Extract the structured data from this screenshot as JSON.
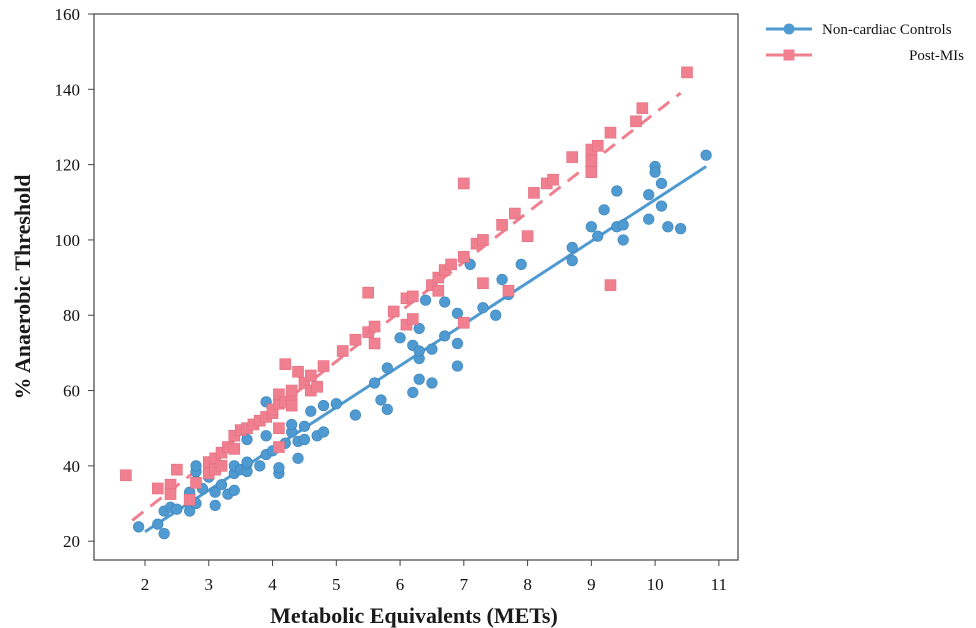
{
  "chart_data": {
    "type": "scatter",
    "xlabel": "Metabolic Equivalents (METs)",
    "ylabel": "% Anaerobic Threshold",
    "xlim": [
      1.2,
      11.3
    ],
    "ylim": [
      15,
      160
    ],
    "xticks": [
      2,
      3,
      4,
      5,
      6,
      7,
      8,
      9,
      10,
      11
    ],
    "yticks": [
      20,
      40,
      60,
      80,
      100,
      120,
      140,
      160
    ],
    "grid": false,
    "legend_position": "top-right, outside plot",
    "series": [
      {
        "name": "Non-cardiac Controls",
        "color": "#4f9ad0",
        "marker": "circle",
        "line_style": "solid",
        "fit_line": [
          [
            2.0,
            22.5
          ],
          [
            10.8,
            119.5
          ]
        ],
        "points": [
          [
            1.9,
            23.8
          ],
          [
            2.2,
            24.5
          ],
          [
            2.3,
            22.0
          ],
          [
            2.3,
            28.0
          ],
          [
            2.4,
            29.0
          ],
          [
            2.5,
            28.5
          ],
          [
            2.7,
            33.0
          ],
          [
            2.7,
            28.0
          ],
          [
            2.8,
            36.0
          ],
          [
            2.8,
            38.5
          ],
          [
            2.8,
            40.0
          ],
          [
            2.8,
            30.0
          ],
          [
            2.9,
            34.0
          ],
          [
            3.0,
            37.0
          ],
          [
            3.1,
            33.0
          ],
          [
            3.1,
            29.5
          ],
          [
            3.2,
            35.0
          ],
          [
            3.3,
            32.5
          ],
          [
            3.4,
            38.0
          ],
          [
            3.4,
            40.0
          ],
          [
            3.4,
            33.5
          ],
          [
            3.5,
            39.0
          ],
          [
            3.6,
            38.5
          ],
          [
            3.6,
            40.5
          ],
          [
            3.6,
            41.0
          ],
          [
            3.6,
            47.0
          ],
          [
            3.8,
            40.0
          ],
          [
            3.9,
            43.0
          ],
          [
            3.9,
            48.0
          ],
          [
            3.9,
            57.0
          ],
          [
            4.0,
            44.0
          ],
          [
            4.1,
            38.0
          ],
          [
            4.1,
            39.5
          ],
          [
            4.2,
            46.0
          ],
          [
            4.3,
            49.0
          ],
          [
            4.3,
            51.0
          ],
          [
            4.4,
            46.5
          ],
          [
            4.4,
            42.0
          ],
          [
            4.5,
            50.5
          ],
          [
            4.5,
            47.0
          ],
          [
            4.6,
            54.5
          ],
          [
            4.7,
            48.0
          ],
          [
            4.8,
            49.0
          ],
          [
            4.8,
            56.0
          ],
          [
            5.0,
            56.5
          ],
          [
            5.3,
            53.5
          ],
          [
            5.6,
            62.0
          ],
          [
            5.7,
            57.5
          ],
          [
            5.8,
            55.0
          ],
          [
            5.8,
            66.0
          ],
          [
            6.0,
            74.0
          ],
          [
            6.2,
            59.5
          ],
          [
            6.2,
            72.0
          ],
          [
            6.3,
            68.5
          ],
          [
            6.3,
            63.0
          ],
          [
            6.3,
            70.5
          ],
          [
            6.3,
            76.5
          ],
          [
            6.4,
            84.0
          ],
          [
            6.5,
            62.0
          ],
          [
            6.5,
            71.0
          ],
          [
            6.7,
            83.5
          ],
          [
            6.7,
            74.5
          ],
          [
            6.9,
            72.5
          ],
          [
            6.9,
            66.5
          ],
          [
            6.9,
            80.5
          ],
          [
            7.1,
            93.5
          ],
          [
            7.3,
            82.0
          ],
          [
            7.5,
            80.0
          ],
          [
            7.6,
            89.5
          ],
          [
            7.7,
            85.5
          ],
          [
            7.9,
            93.5
          ],
          [
            8.7,
            94.5
          ],
          [
            8.7,
            98.0
          ],
          [
            9.0,
            103.5
          ],
          [
            9.1,
            101.0
          ],
          [
            9.2,
            108.0
          ],
          [
            9.4,
            113.0
          ],
          [
            9.4,
            103.5
          ],
          [
            9.5,
            104.0
          ],
          [
            9.5,
            100.0
          ],
          [
            9.9,
            105.5
          ],
          [
            9.9,
            112.0
          ],
          [
            10.0,
            119.5
          ],
          [
            10.0,
            118.0
          ],
          [
            10.1,
            115.0
          ],
          [
            10.1,
            109.0
          ],
          [
            10.2,
            103.5
          ],
          [
            10.4,
            103.0
          ],
          [
            10.8,
            122.5
          ]
        ]
      },
      {
        "name": "Post-MIs",
        "color": "#f07f8f",
        "marker": "square",
        "line_style": "dashed",
        "fit_line": [
          [
            1.8,
            25.5
          ],
          [
            10.4,
            139.0
          ]
        ],
        "points": [
          [
            1.7,
            37.5
          ],
          [
            2.2,
            34.0
          ],
          [
            2.4,
            35.0
          ],
          [
            2.4,
            32.5
          ],
          [
            2.5,
            39.0
          ],
          [
            2.7,
            31.0
          ],
          [
            2.8,
            35.5
          ],
          [
            3.0,
            40.0
          ],
          [
            3.0,
            38.0
          ],
          [
            3.0,
            41.0
          ],
          [
            3.1,
            39.0
          ],
          [
            3.1,
            42.0
          ],
          [
            3.2,
            40.0
          ],
          [
            3.2,
            43.5
          ],
          [
            3.3,
            45.0
          ],
          [
            3.4,
            44.5
          ],
          [
            3.4,
            48.0
          ],
          [
            3.5,
            49.5
          ],
          [
            3.6,
            50.0
          ],
          [
            3.7,
            51.0
          ],
          [
            3.8,
            52.0
          ],
          [
            3.9,
            53.0
          ],
          [
            4.0,
            54.0
          ],
          [
            4.0,
            55.0
          ],
          [
            4.1,
            56.5
          ],
          [
            4.1,
            59.0
          ],
          [
            4.1,
            45.0
          ],
          [
            4.1,
            50.0
          ],
          [
            4.2,
            67.0
          ],
          [
            4.2,
            57.0
          ],
          [
            4.3,
            58.0
          ],
          [
            4.3,
            56.0
          ],
          [
            4.3,
            60.0
          ],
          [
            4.4,
            65.0
          ],
          [
            4.5,
            62.0
          ],
          [
            4.6,
            64.0
          ],
          [
            4.6,
            60.0
          ],
          [
            4.7,
            61.0
          ],
          [
            4.8,
            66.5
          ],
          [
            5.1,
            70.5
          ],
          [
            5.3,
            73.5
          ],
          [
            5.5,
            86.0
          ],
          [
            5.5,
            75.5
          ],
          [
            5.6,
            77.0
          ],
          [
            5.6,
            72.5
          ],
          [
            5.9,
            81.0
          ],
          [
            6.1,
            84.5
          ],
          [
            6.1,
            77.5
          ],
          [
            6.2,
            85.0
          ],
          [
            6.2,
            79.0
          ],
          [
            6.5,
            88.0
          ],
          [
            6.6,
            90.0
          ],
          [
            6.6,
            86.5
          ],
          [
            6.7,
            92.0
          ],
          [
            6.8,
            93.5
          ],
          [
            7.0,
            95.5
          ],
          [
            7.0,
            115.0
          ],
          [
            7.0,
            78.0
          ],
          [
            7.2,
            99.0
          ],
          [
            7.3,
            100.0
          ],
          [
            7.3,
            88.5
          ],
          [
            7.6,
            104.0
          ],
          [
            7.7,
            86.5
          ],
          [
            7.8,
            107.0
          ],
          [
            8.0,
            101.0
          ],
          [
            8.1,
            112.5
          ],
          [
            8.3,
            115.0
          ],
          [
            8.4,
            116.0
          ],
          [
            8.7,
            122.0
          ],
          [
            9.0,
            118.0
          ],
          [
            9.0,
            121.0
          ],
          [
            9.0,
            124.0
          ],
          [
            9.1,
            125.0
          ],
          [
            9.3,
            128.5
          ],
          [
            9.3,
            88.0
          ],
          [
            9.7,
            131.5
          ],
          [
            9.8,
            135.0
          ],
          [
            10.5,
            144.5
          ]
        ]
      }
    ]
  }
}
